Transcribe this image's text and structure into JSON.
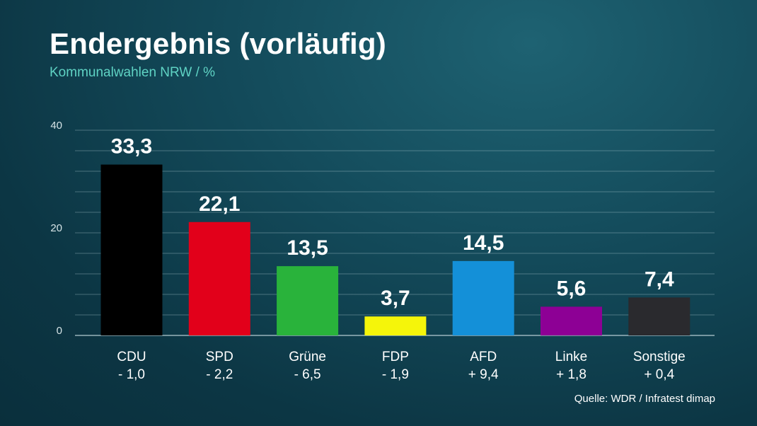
{
  "chart_data": {
    "type": "bar",
    "title": "Endergebnis (vorläufig)",
    "subtitle": "Kommunalwahlen NRW / %",
    "categories": [
      "CDU",
      "SPD",
      "Grüne",
      "FDP",
      "AFD",
      "Linke",
      "Sonstige"
    ],
    "values": [
      33.3,
      22.1,
      13.5,
      3.7,
      14.5,
      5.6,
      7.4
    ],
    "value_labels": [
      "33,3",
      "22,1",
      "13,5",
      "3,7",
      "14,5",
      "5,6",
      "7,4"
    ],
    "changes": [
      "- 1,0",
      "- 2,2",
      "- 6,5",
      "- 1,9",
      "+ 9,4",
      "+ 1,8",
      "+ 0,4"
    ],
    "colors": [
      "#000000",
      "#e2001a",
      "#29b33b",
      "#f5f50a",
      "#1490d8",
      "#8d0095",
      "#2a2a2e"
    ],
    "yticks": [
      0,
      20,
      40
    ],
    "ylim": [
      0,
      40
    ],
    "grid": true,
    "source": "Quelle: WDR / Infratest dimap"
  }
}
